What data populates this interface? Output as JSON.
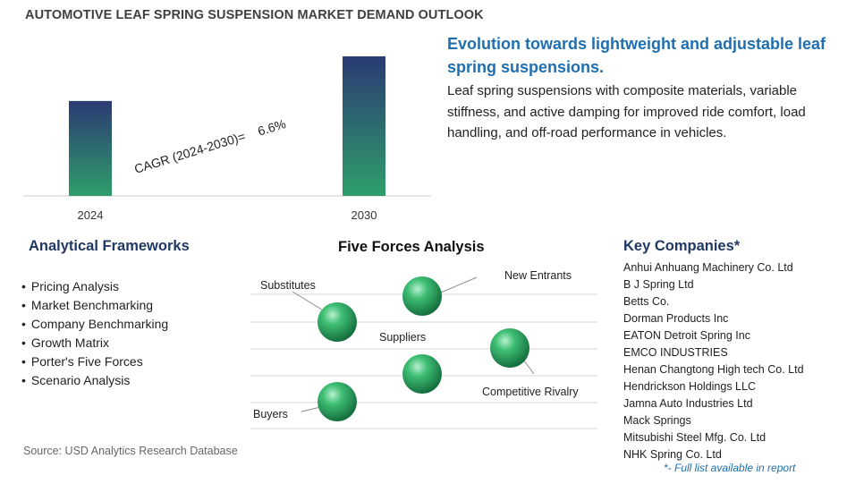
{
  "title": "AUTOMOTIVE LEAF SPRING SUSPENSION MARKET DEMAND OUTLOOK",
  "chart_data": {
    "type": "bar",
    "categories": [
      "2024",
      "2030"
    ],
    "values": [
      1.0,
      1.47
    ],
    "annotation": "CAGR (2024-2030)=    6.6%",
    "colors": {
      "bar_top": "#2b3a73",
      "bar_bottom": "#2f9e6b"
    }
  },
  "insight": {
    "headline": "Evolution towards lightweight and adjustable leaf spring suspensions.",
    "description": "Leaf spring suspensions with composite materials, variable stiffness, and active damping for improved ride comfort, load handling, and off-road performance in vehicles."
  },
  "analytical_frameworks": {
    "title": "Analytical Frameworks",
    "items": [
      "Pricing Analysis",
      "Market Benchmarking",
      "Company Benchmarking",
      "Growth Matrix",
      "Porter's Five Forces",
      "Scenario Analysis"
    ]
  },
  "five_forces": {
    "title": "Five Forces Analysis",
    "labels": {
      "substitutes": "Substitutes",
      "new_entrants": "New Entrants",
      "suppliers": "Suppliers",
      "competitive_rivalry": "Competitive Rivalry",
      "buyers": "Buyers"
    }
  },
  "key_companies": {
    "title": "Key Companies*",
    "items": [
      "Anhui Anhuang Machinery Co. Ltd",
      "B J Spring Ltd",
      "Betts Co.",
      "Dorman Products Inc",
      "EATON Detroit Spring Inc",
      "EMCO INDUSTRIES",
      "Henan Changtong High tech Co. Ltd",
      "Hendrickson Holdings LLC",
      "Jamna Auto Industries Ltd",
      "Mack Springs",
      "Mitsubishi Steel Mfg. Co. Ltd",
      "NHK Spring Co. Ltd"
    ],
    "note": "*- Full list available in report"
  },
  "source": "Source: USD Analytics Research Database"
}
